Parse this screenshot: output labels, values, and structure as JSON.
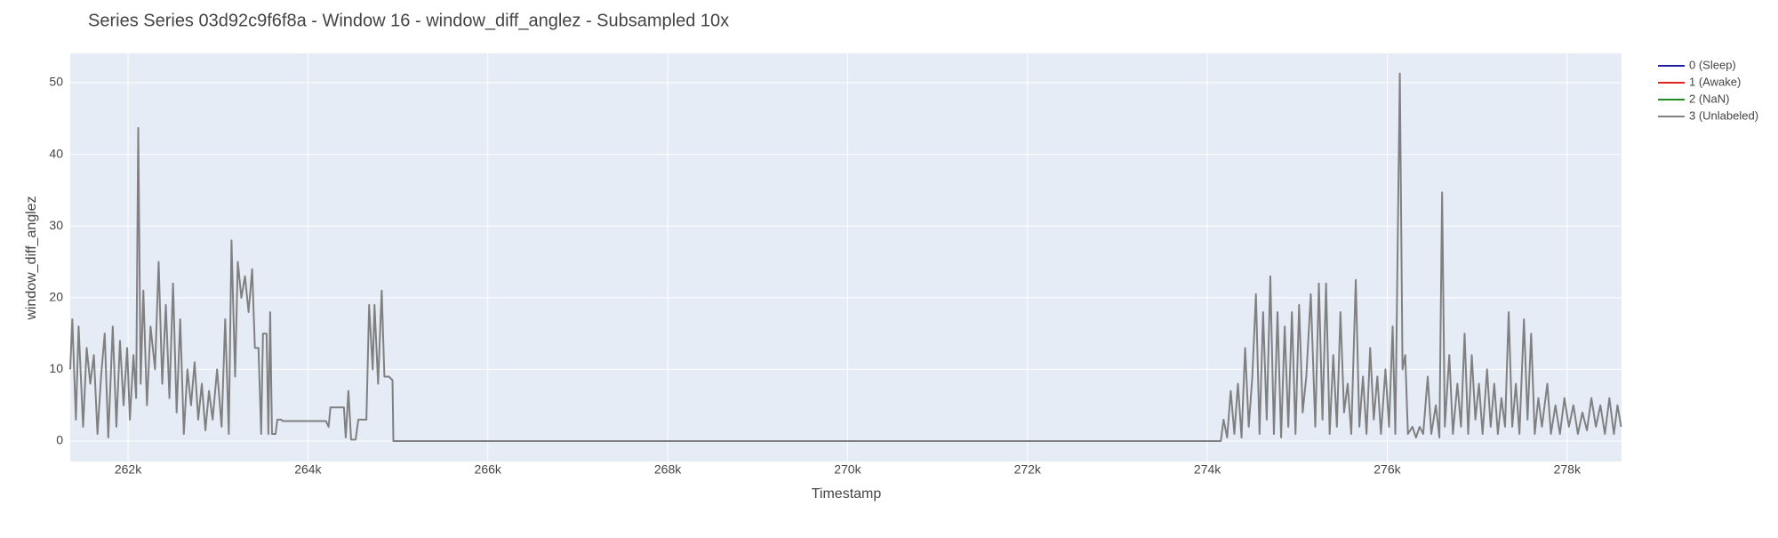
{
  "chart_data": {
    "type": "line",
    "title": "Series Series 03d92c9f6f8a - Window 16 - window_diff_anglez - Subsampled 10x",
    "x_label": "Timestamp",
    "y_label": "window_diff_anglez",
    "xlim": [
      261357,
      278605
    ],
    "ylim": [
      -2.85,
      54.1
    ],
    "xticks": [
      {
        "value": 262000,
        "label": "262k"
      },
      {
        "value": 264000,
        "label": "264k"
      },
      {
        "value": 266000,
        "label": "266k"
      },
      {
        "value": 268000,
        "label": "268k"
      },
      {
        "value": 270000,
        "label": "270k"
      },
      {
        "value": 272000,
        "label": "272k"
      },
      {
        "value": 274000,
        "label": "274k"
      },
      {
        "value": 276000,
        "label": "276k"
      },
      {
        "value": 278000,
        "label": "278k"
      }
    ],
    "yticks": [
      0,
      10,
      20,
      30,
      40,
      50
    ],
    "grid": true,
    "legend": "outside-top-right",
    "series": [
      {
        "name": "0 (Sleep)",
        "color": "#1f1fa0",
        "x": [],
        "values": []
      },
      {
        "name": "1 (Awake)",
        "color": "#e52222",
        "x": [],
        "values": []
      },
      {
        "name": "2 (NaN)",
        "color": "#228b22",
        "x": [],
        "values": []
      },
      {
        "name": "3 (Unlabeled)",
        "color": "#808080",
        "x": [
          261357,
          261380,
          261420,
          261450,
          261500,
          261540,
          261580,
          261620,
          261660,
          261700,
          261740,
          261780,
          261830,
          261870,
          261910,
          261950,
          261990,
          262020,
          262060,
          262090,
          262113,
          262140,
          262170,
          262210,
          262250,
          262300,
          262340,
          262380,
          262420,
          262460,
          262500,
          262540,
          262580,
          262620,
          262660,
          262700,
          262740,
          262780,
          262820,
          262860,
          262900,
          262940,
          262990,
          263040,
          263080,
          263120,
          263150,
          263190,
          263220,
          263260,
          263300,
          263340,
          263380,
          263410,
          263450,
          263480,
          263500,
          263540,
          263560,
          263580,
          263600,
          263640,
          263660,
          263700,
          263720,
          264200,
          264230,
          264250,
          264400,
          264420,
          264450,
          264480,
          264530,
          264560,
          264650,
          264680,
          264720,
          264740,
          264780,
          264820,
          264850,
          264900,
          264940,
          264950,
          274150,
          274180,
          274220,
          274260,
          274300,
          274340,
          274380,
          274420,
          274460,
          274500,
          274540,
          274580,
          274620,
          274660,
          274700,
          274740,
          274780,
          274820,
          274860,
          274900,
          274940,
          274980,
          275020,
          275060,
          275100,
          275150,
          275200,
          275240,
          275280,
          275320,
          275360,
          275400,
          275440,
          275480,
          275520,
          275560,
          275600,
          275650,
          275690,
          275730,
          275770,
          275810,
          275850,
          275890,
          275930,
          275980,
          276020,
          276060,
          276090,
          276140,
          276170,
          276200,
          276230,
          276280,
          276320,
          276360,
          276400,
          276450,
          276490,
          276540,
          276580,
          276610,
          276640,
          276690,
          276730,
          276780,
          276820,
          276860,
          276900,
          276940,
          276980,
          277020,
          277060,
          277110,
          277150,
          277190,
          277230,
          277270,
          277310,
          277350,
          277390,
          277430,
          277470,
          277520,
          277560,
          277600,
          277640,
          277680,
          277720,
          277780,
          277820,
          277870,
          277920,
          277970,
          278020,
          278070,
          278120,
          278170,
          278220,
          278270,
          278320,
          278370,
          278420,
          278470,
          278520,
          278560,
          278600
        ],
        "values": [
          10,
          17,
          3,
          16,
          2,
          13,
          8,
          12,
          1,
          9,
          15,
          0.5,
          16,
          2,
          14,
          5,
          13,
          3,
          12,
          6,
          43.7,
          8,
          21,
          5,
          16,
          10,
          25,
          8,
          19,
          6,
          22,
          4,
          17,
          1,
          10,
          5,
          11,
          3,
          8,
          1.5,
          7,
          3,
          10,
          2,
          17,
          1,
          28,
          9,
          25,
          20,
          23,
          18,
          24,
          13,
          13,
          1,
          15,
          15,
          1,
          18,
          1,
          1,
          3,
          3,
          2.8,
          2.8,
          2,
          4.7,
          4.7,
          0.5,
          7,
          0.2,
          0.2,
          3,
          3,
          19,
          10,
          19,
          8,
          21,
          9,
          9,
          8.5,
          0,
          0,
          3,
          0.5,
          7,
          1,
          8,
          0.5,
          13,
          2,
          9,
          20.5,
          1,
          18,
          3,
          23,
          1,
          18,
          0.5,
          16,
          2,
          18,
          1,
          19,
          4,
          9,
          20.5,
          2,
          22,
          3,
          22,
          1,
          12,
          2,
          18,
          4,
          8,
          1,
          22.5,
          2,
          9,
          1,
          13,
          3,
          9,
          1,
          10,
          2,
          16,
          1,
          51.3,
          10,
          12,
          1,
          2,
          0.5,
          2,
          1,
          9,
          1,
          5,
          0.5,
          34.7,
          2,
          12,
          1,
          8,
          2,
          15,
          1,
          12,
          3,
          8,
          1,
          10,
          2,
          8,
          1,
          6,
          2,
          18,
          2,
          8,
          1,
          17,
          3,
          15,
          1,
          6,
          2,
          8,
          1,
          5,
          1,
          6,
          2,
          5,
          1,
          4,
          1.5,
          6,
          2,
          5,
          1,
          6,
          1,
          5,
          2
        ]
      }
    ]
  }
}
